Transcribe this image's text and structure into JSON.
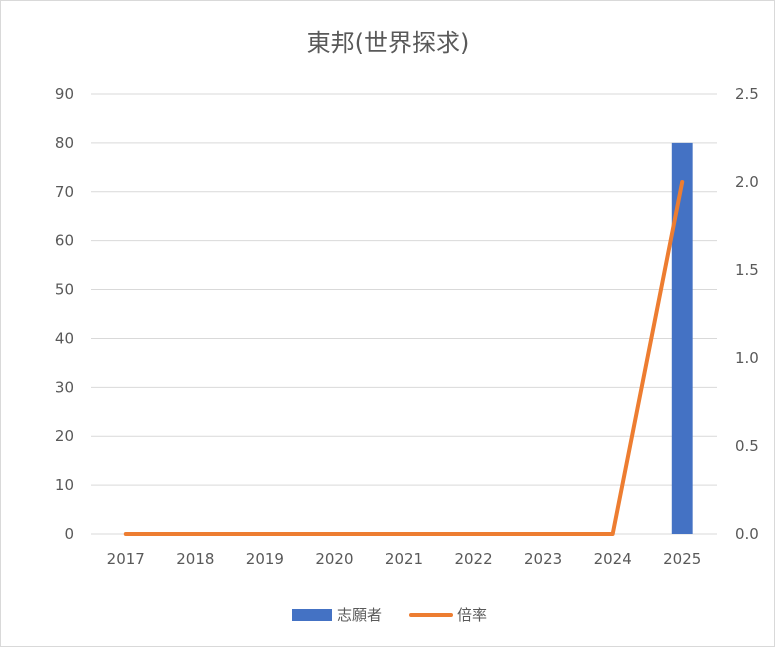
{
  "chart_data": {
    "type": "bar",
    "title": "東邦(世界探求)",
    "categories": [
      "2017",
      "2018",
      "2019",
      "2020",
      "2021",
      "2022",
      "2023",
      "2024",
      "2025"
    ],
    "series": [
      {
        "name": "志願者",
        "type": "bar",
        "axis": "left",
        "color": "#4472c4",
        "values": [
          0,
          0,
          0,
          0,
          0,
          0,
          0,
          0,
          80
        ]
      },
      {
        "name": "倍率",
        "type": "line",
        "axis": "right",
        "color": "#ed7d31",
        "values": [
          0,
          0,
          0,
          0,
          0,
          0,
          0,
          0,
          2.0
        ]
      }
    ],
    "ylim_left": [
      0,
      90
    ],
    "ylim_right": [
      0,
      2.5
    ],
    "yticks_left": [
      "0",
      "10",
      "20",
      "30",
      "40",
      "50",
      "60",
      "70",
      "80",
      "90"
    ],
    "yticks_right": [
      "0.0",
      "0.5",
      "1.0",
      "1.5",
      "2.0",
      "2.5"
    ],
    "grid": true,
    "legend_position": "bottom",
    "gridline_color": "#d9d9d9"
  }
}
